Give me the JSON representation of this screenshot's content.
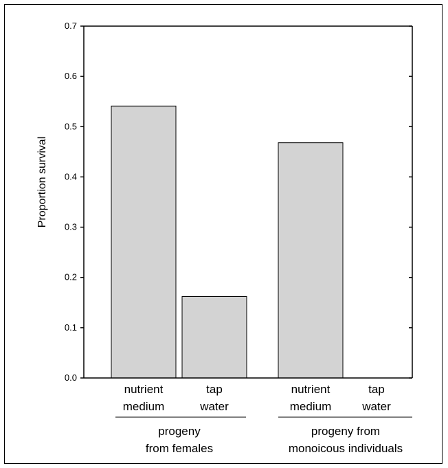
{
  "chart_data": {
    "type": "bar",
    "title": "",
    "xlabel": "",
    "ylabel": "Proportion survival",
    "ylim": [
      0,
      0.7
    ],
    "yticks": [
      "0.0",
      "0.1",
      "0.2",
      "0.3",
      "0.4",
      "0.5",
      "0.6",
      "0.7"
    ],
    "grid": false,
    "bar_color": "#d3d3d3",
    "categories": [
      {
        "line1": "nutrient",
        "line2": "medium"
      },
      {
        "line1": "tap",
        "line2": "water"
      },
      {
        "line1": "nutrient",
        "line2": "medium"
      },
      {
        "line1": "tap",
        "line2": "water"
      }
    ],
    "values": [
      0.541,
      0.162,
      0.468,
      0.0
    ],
    "groups": [
      {
        "line1": "progeny",
        "line2": "from females"
      },
      {
        "line1": "progeny from",
        "line2": "monoicous individuals"
      }
    ]
  }
}
